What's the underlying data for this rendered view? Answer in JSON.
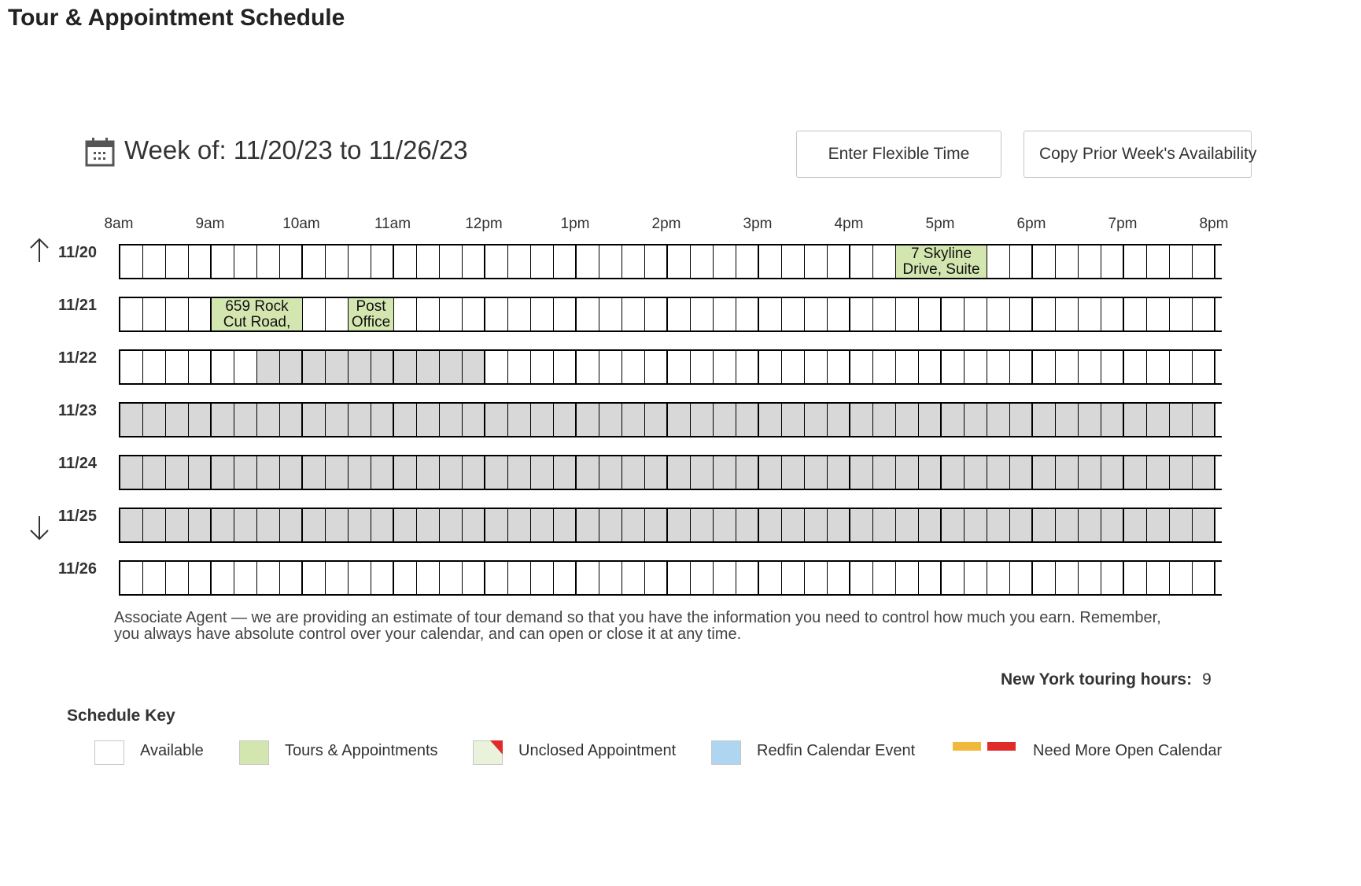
{
  "header": {
    "title": "Tour & Appointment Schedule"
  },
  "week": {
    "icon": "calendar-icon",
    "label": "Week of: 11/20/23 to 11/26/23"
  },
  "toolbar": {
    "flexible_time_label": "Enter Flexible Time",
    "copy_prior_label": "Copy Prior Week's Availability"
  },
  "hours": [
    "8am",
    "9am",
    "10am",
    "11am",
    "12pm",
    "1pm",
    "2pm",
    "3pm",
    "4pm",
    "5pm",
    "6pm",
    "7pm",
    "8pm"
  ],
  "slots_per_hour": 4,
  "visible_slots": 48,
  "nav": {
    "up_icon": "arrow-up-icon",
    "down_icon": "arrow-down-icon"
  },
  "days": [
    {
      "label": "11/20",
      "closed_ranges": [],
      "events": [
        {
          "start_slot": 34,
          "span": 4,
          "lines": [
            "7 Skyline",
            "Drive, Suite"
          ]
        }
      ]
    },
    {
      "label": "11/21",
      "closed_ranges": [],
      "events": [
        {
          "start_slot": 4,
          "span": 4,
          "lines": [
            "659 Rock",
            "Cut Road,"
          ]
        },
        {
          "start_slot": 10,
          "span": 2,
          "lines": [
            "Post",
            "Office"
          ]
        }
      ]
    },
    {
      "label": "11/22",
      "closed_ranges": [
        [
          6,
          16
        ]
      ],
      "events": []
    },
    {
      "label": "11/23",
      "closed_ranges": [
        [
          0,
          48
        ]
      ],
      "events": []
    },
    {
      "label": "11/24",
      "closed_ranges": [
        [
          0,
          48
        ]
      ],
      "events": []
    },
    {
      "label": "11/25",
      "closed_ranges": [
        [
          0,
          48
        ]
      ],
      "events": []
    },
    {
      "label": "11/26",
      "closed_ranges": [],
      "events": []
    }
  ],
  "notice": {
    "line1": "Associate Agent — we are providing an estimate of tour demand so that you have the information you need to control how much you earn. Remember,",
    "line2": "you always have absolute control over your calendar, and can open or close it at any time."
  },
  "touring_hours": {
    "label": "New York touring hours:",
    "value": "9"
  },
  "schedule_key": {
    "title": "Schedule Key",
    "items": [
      {
        "label": "Available",
        "color": "#ffffff"
      },
      {
        "label": "Tours & Appointments",
        "color": "#d4e6b0"
      },
      {
        "label": "Unclosed Appointment",
        "color": "#eaf2dc",
        "corner_color": "#e02b2b"
      },
      {
        "label": "Redfin Calendar Event",
        "color": "#aed6f1"
      },
      {
        "label": "Need More Open Calendar",
        "colors": [
          "#f0b93b",
          "#e02b2b"
        ]
      }
    ]
  },
  "colors": {
    "available": "#ffffff",
    "closed": "#d8d8d8",
    "event": "#d4e6b0",
    "grid_line": "#000000"
  }
}
